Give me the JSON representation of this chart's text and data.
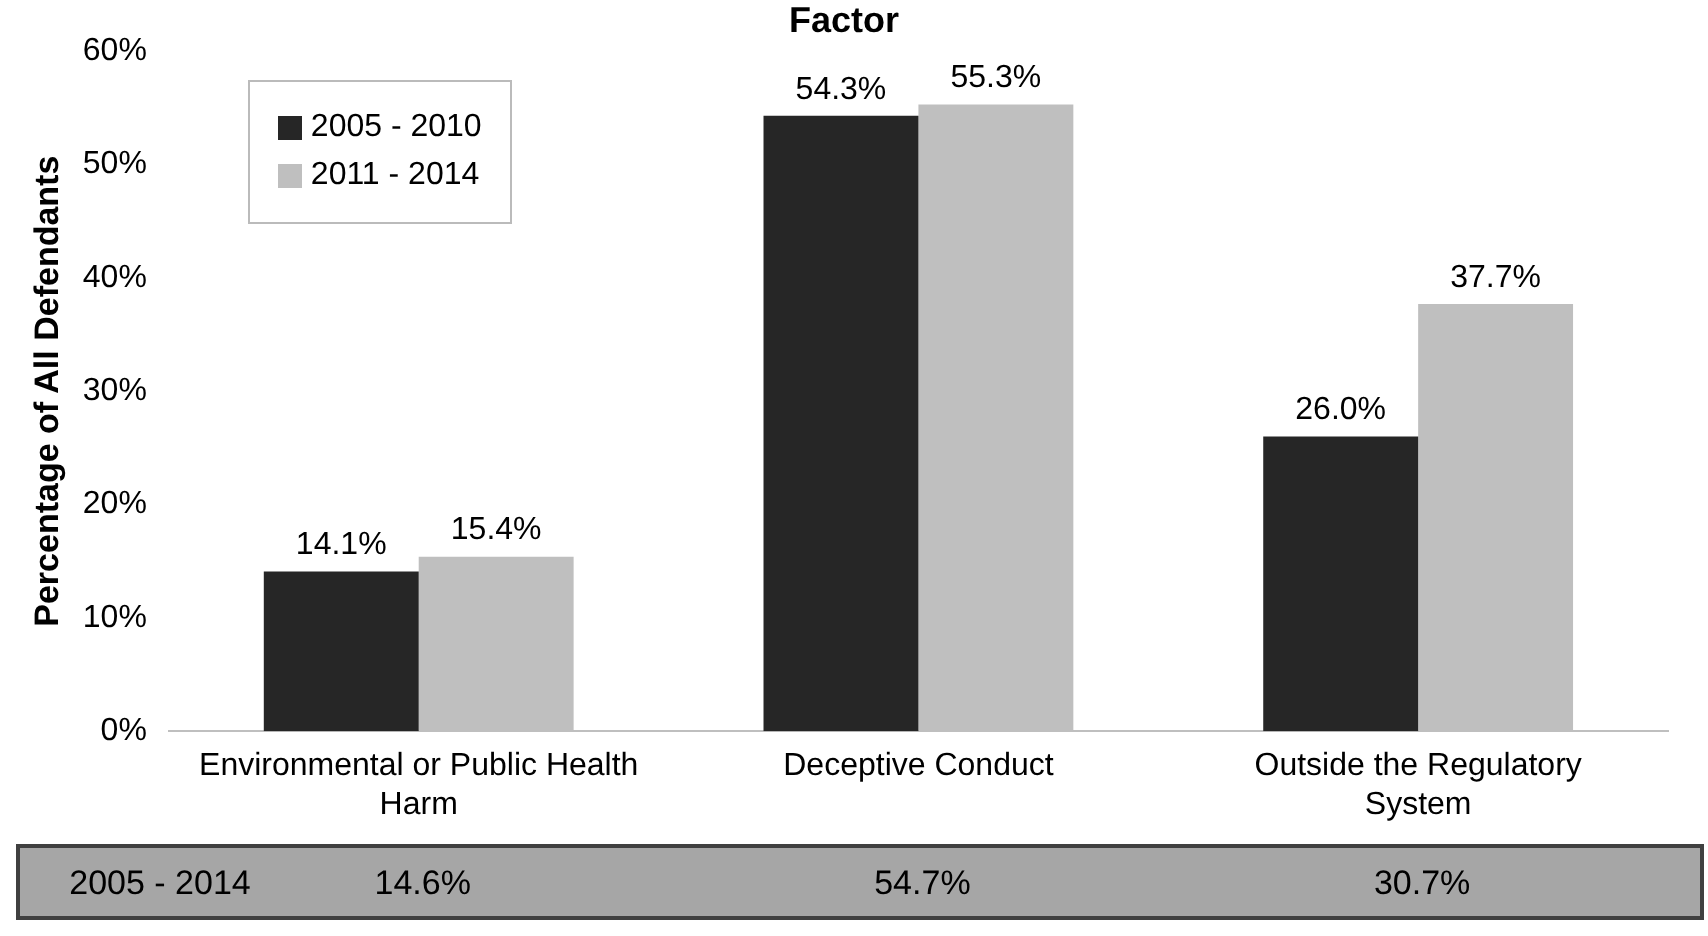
{
  "chart_data": {
    "type": "bar",
    "title": "Factor",
    "ylabel": "Percentage of All Defendants",
    "categories": [
      "Environmental or Public Health Harm",
      "Deceptive Conduct",
      "Outside the Regulatory System"
    ],
    "series": [
      {
        "name": "2005 - 2010",
        "color": "#262626",
        "values": [
          14.1,
          54.3,
          26.0
        ],
        "value_labels": [
          "14.1%",
          "54.3%",
          "26.0%"
        ]
      },
      {
        "name": "2011 - 2014",
        "color": "#bfbfbf",
        "values": [
          15.4,
          55.3,
          37.7
        ],
        "value_labels": [
          "15.4%",
          "55.3%",
          "37.7%"
        ]
      }
    ],
    "ylim": [
      0,
      60
    ],
    "yticks": [
      {
        "value": 0,
        "label": "0%"
      },
      {
        "value": 10,
        "label": "10%"
      },
      {
        "value": 20,
        "label": "20%"
      },
      {
        "value": 30,
        "label": "30%"
      },
      {
        "value": 40,
        "label": "40%"
      },
      {
        "value": 50,
        "label": "50%"
      },
      {
        "value": 60,
        "label": "60%"
      }
    ],
    "grid": false,
    "legend": "top left",
    "annotations": [
      "2005 - 2014",
      "14.6%",
      "54.7%",
      "30.7%"
    ]
  }
}
